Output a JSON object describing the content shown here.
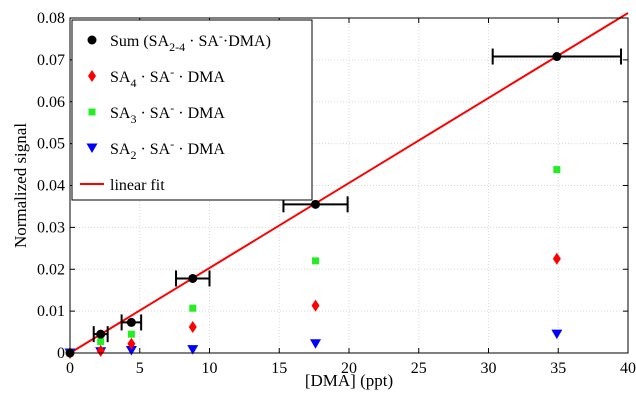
{
  "chart_data": {
    "type": "scatter",
    "xlabel": "[DMA] (ppt)",
    "ylabel": "Normalized signal",
    "xlim": [
      0,
      40
    ],
    "ylim": [
      0,
      0.08
    ],
    "xticks": [
      0,
      5,
      10,
      15,
      20,
      25,
      30,
      35,
      40
    ],
    "xtick_labels": [
      "0",
      "5",
      "10",
      "15",
      "20",
      "25",
      "30",
      "35",
      "40"
    ],
    "yticks": [
      0,
      0.01,
      0.02,
      0.03,
      0.04,
      0.05,
      0.06,
      0.07,
      0.08
    ],
    "ytick_labels": [
      "0",
      "0.01",
      "0.02",
      "0.03",
      "0.04",
      "0.05",
      "0.06",
      "0.07",
      "0.08"
    ],
    "grid": true,
    "legend_position": "top-left",
    "series": [
      {
        "key": "sum",
        "legend": {
          "pre": "Sum (SA",
          "sub": "2-4",
          "mid": " · SA",
          "sup": "-",
          "post": "·DMA)"
        },
        "marker": "circle",
        "color": "#000000",
        "x": [
          0,
          2.2,
          4.4,
          8.8,
          17.6,
          34.9
        ],
        "y": [
          0,
          0.0045,
          0.0073,
          0.0178,
          0.0355,
          0.0708
        ],
        "xerr": [
          0,
          0.5,
          0.7,
          1.2,
          2.3,
          4.6
        ]
      },
      {
        "key": "sa4",
        "legend": {
          "pre": "SA",
          "sub": "4",
          "mid": " · SA",
          "sup": "-",
          "post": " · DMA"
        },
        "marker": "diamond",
        "color": "#ff0000",
        "x": [
          0,
          2.2,
          4.4,
          8.8,
          17.6,
          34.9
        ],
        "y": [
          0,
          0.0005,
          0.0022,
          0.0062,
          0.0113,
          0.0225
        ]
      },
      {
        "key": "sa3",
        "legend": {
          "pre": "SA",
          "sub": "3",
          "mid": " · SA",
          "sup": "-",
          "post": " · DMA"
        },
        "marker": "square",
        "color": "#22ee22",
        "x": [
          0,
          2.2,
          4.4,
          8.8,
          17.6,
          34.9
        ],
        "y": [
          0,
          0.0027,
          0.0045,
          0.0107,
          0.022,
          0.0438
        ]
      },
      {
        "key": "sa2",
        "legend": {
          "pre": "SA",
          "sub": "2",
          "mid": " · SA",
          "sup": "-",
          "post": " · DMA"
        },
        "marker": "triangle-down",
        "color": "#0000ff",
        "x": [
          0,
          2.2,
          4.4,
          8.8,
          17.6,
          34.9
        ],
        "y": [
          0,
          0.0003,
          0.0006,
          0.0008,
          0.0022,
          0.0045
        ]
      }
    ],
    "fit": {
      "label": "linear fit",
      "color": "#ff0000",
      "x": [
        0,
        40
      ],
      "y": [
        0,
        0.0812
      ]
    }
  }
}
